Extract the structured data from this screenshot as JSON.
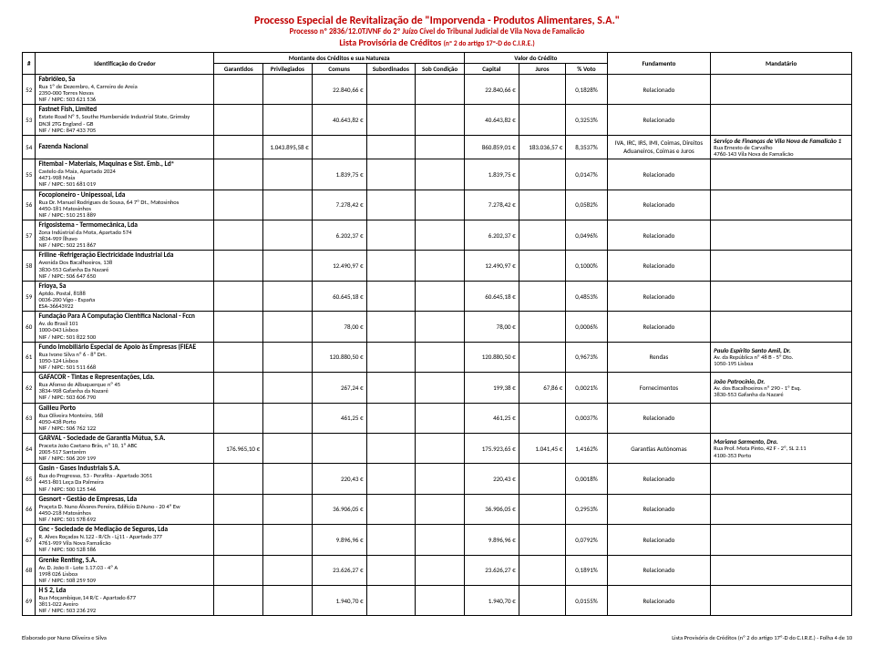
{
  "header": {
    "title_main": "Processo Especial de Revitalização de \"Imporvenda - Produtos Alimentares, S.A.\"",
    "title_sub": "Processo nº 2836/12.0TJVNF do 2º Juízo Cível do Tribunal Judicial de Vila Nova de Famalicão",
    "title_list": "Lista Provisória de Créditos",
    "title_list_small": "(nº 2 do artigo 17º-D do C.I.R.E.)"
  },
  "columns": {
    "idx": "#",
    "credor": "Identificação do Credor",
    "montante_group": "Montante dos Créditos e sua Natureza",
    "garantidos": "Garantidos",
    "privilegiados": "Privilegiados",
    "comuns": "Comuns",
    "subordinados": "Subordinados",
    "sob_condicao": "Sob Condição",
    "valor_group": "Valor do Crédito",
    "capital": "Capital",
    "juros": "Juros",
    "voto": "% Voto",
    "fundamento": "Fundamento",
    "mandatario": "Mandatário"
  },
  "rows": [
    {
      "idx": "52",
      "name": "Fabrióleo, Sa",
      "addr": "Rua 1º de Dezembro, 4, Carreiro de Areia",
      "addr2": "2350-000 Torres Novas",
      "nif": "NIF / NIPC: 503 621 536",
      "garantidos": "",
      "privilegiados": "",
      "comuns": "22.840,66 €",
      "subordinados": "",
      "sob": "",
      "capital": "22.840,66 €",
      "juros": "",
      "voto": "0,1828%",
      "fundamento": "Relacionado",
      "mandatario_name": "",
      "mandatario_addr": "",
      "mandatario_addr2": ""
    },
    {
      "idx": "53",
      "name": "Fastnet Fish, Limited",
      "addr": "Estate Road Nº 5, Southe Humberside Industrial State, Grimsby",
      "addr2": "DN3l 2TG England - GB",
      "nif": "NIF / NIPC: 847 433 705",
      "garantidos": "",
      "privilegiados": "",
      "comuns": "40.643,82 €",
      "subordinados": "",
      "sob": "",
      "capital": "40.643,82 €",
      "juros": "",
      "voto": "0,3253%",
      "fundamento": "Relacionado",
      "mandatario_name": "",
      "mandatario_addr": "",
      "mandatario_addr2": ""
    },
    {
      "idx": "54",
      "name": "Fazenda Nacional",
      "addr": "",
      "addr2": "",
      "nif": "",
      "garantidos": "",
      "privilegiados": "1.043.895,58 €",
      "comuns": "",
      "subordinados": "",
      "sob": "",
      "capital": "860.859,01 €",
      "juros": "183.036,57 €",
      "voto": "8,3537%",
      "fundamento": "IVA, IRC, IRS, IMI, Coimas, Direitos Aduaneiros, Coimas e Juros",
      "mandatario_name": "Serviço de Finanças de Vila Nova de Famalicão 1",
      "mandatario_addr": "Rua Ernesto de Carvalho",
      "mandatario_addr2": "4760-143 Vila Nova de Famalicão"
    },
    {
      "idx": "55",
      "name": "Fitembal - Materiais, Maquinas e Sist. Emb., Ldª",
      "addr": "Castelo da Maia, Apartado 2024",
      "addr2": "4471-908 Maia",
      "nif": "NIF / NIPC: 501 681 019",
      "garantidos": "",
      "privilegiados": "",
      "comuns": "1.839,75 €",
      "subordinados": "",
      "sob": "",
      "capital": "1.839,75 €",
      "juros": "",
      "voto": "0,0147%",
      "fundamento": "Relacionado",
      "mandatario_name": "",
      "mandatario_addr": "",
      "mandatario_addr2": ""
    },
    {
      "idx": "56",
      "name": "Focopioneiro - Unipessoal, Lda",
      "addr": "Rua Dr. Manuel Rodrigues de Sousa, 64 7º Dt., Matosinhos",
      "addr2": "4450-181 Matosinhos",
      "nif": "NIF / NIPC: 510 251 889",
      "garantidos": "",
      "privilegiados": "",
      "comuns": "7.278,42 €",
      "subordinados": "",
      "sob": "",
      "capital": "7.278,42 €",
      "juros": "",
      "voto": "0,0582%",
      "fundamento": "Relacionado",
      "mandatario_name": "",
      "mandatario_addr": "",
      "mandatario_addr2": ""
    },
    {
      "idx": "57",
      "name": "Frigosistema - Termomecânica, Lda",
      "addr": "Zona Indústrial da Mota, Apartado 574",
      "addr2": "3834-909 Ílhavo",
      "nif": "NIF / NIPC: 502 251 867",
      "garantidos": "",
      "privilegiados": "",
      "comuns": "6.202,37 €",
      "subordinados": "",
      "sob": "",
      "capital": "6.202,37 €",
      "juros": "",
      "voto": "0,0496%",
      "fundamento": "Relacionado",
      "mandatario_name": "",
      "mandatario_addr": "",
      "mandatario_addr2": ""
    },
    {
      "idx": "58",
      "name": "Friline -Refrigeração Electricidade Industrial Lda",
      "addr": "Avenida Dos Bacalhoeiros, 138",
      "addr2": "3830-553 Gafanha Da Nazaré",
      "nif": "NIF / NIPC: 506 647 650",
      "garantidos": "",
      "privilegiados": "",
      "comuns": "12.490,97 €",
      "subordinados": "",
      "sob": "",
      "capital": "12.490,97 €",
      "juros": "",
      "voto": "0,1000%",
      "fundamento": "Relacionado",
      "mandatario_name": "",
      "mandatario_addr": "",
      "mandatario_addr2": ""
    },
    {
      "idx": "59",
      "name": "Frioya, Sa",
      "addr": "Aptdo. Postal, 8188",
      "addr2": "0036-200 Vigo - España",
      "nif": "ESA-36643922",
      "garantidos": "",
      "privilegiados": "",
      "comuns": "60.645,18 €",
      "subordinados": "",
      "sob": "",
      "capital": "60.645,18 €",
      "juros": "",
      "voto": "0,4853%",
      "fundamento": "Relacionado",
      "mandatario_name": "",
      "mandatario_addr": "",
      "mandatario_addr2": ""
    },
    {
      "idx": "60",
      "name": "Fundação Para A Computação Científica Nacional - Fccn",
      "addr": "Av. do Brasil 101",
      "addr2": "1000-043 Lisboa",
      "nif": "NIF / NIPC: 501 822 500",
      "garantidos": "",
      "privilegiados": "",
      "comuns": "78,00 €",
      "subordinados": "",
      "sob": "",
      "capital": "78,00 €",
      "juros": "",
      "voto": "0,0006%",
      "fundamento": "Relacionado",
      "mandatario_name": "",
      "mandatario_addr": "",
      "mandatario_addr2": ""
    },
    {
      "idx": "61",
      "name": "Fundo Imobiliário Especial de Apoio às Empresas (FIEAE",
      "addr": "Rua Ivone Silva nº 6 - 8º Drt.",
      "addr2": "1050-124 Lisboa",
      "nif": "NIF / NIPC: 501 511 668",
      "garantidos": "",
      "privilegiados": "",
      "comuns": "120.880,50 €",
      "subordinados": "",
      "sob": "",
      "capital": "120.880,50 €",
      "juros": "",
      "voto": "0,9673%",
      "fundamento": "Rendas",
      "mandatario_name": "Paulo Espírito Santo Amil, Dr.",
      "mandatario_addr": "Av. da República nº 48 B - 5º Dto.",
      "mandatario_addr2": "1050-195 Lisboa"
    },
    {
      "idx": "62",
      "name": "GAFACOR - Tintas e Representações, Lda.",
      "addr": "Rua Afonso de Albuquerque nº 45",
      "addr2": "3834-908 Gafanha da Nazaré",
      "nif": "NIF / NIPC: 503 606 790",
      "garantidos": "",
      "privilegiados": "",
      "comuns": "267,24 €",
      "subordinados": "",
      "sob": "",
      "capital": "199,38 €",
      "juros": "67,86 €",
      "voto": "0,0021%",
      "fundamento": "Fornecimentos",
      "mandatario_name": "João Patrocínio, Dr.",
      "mandatario_addr": "Av. dos Bacalhoeiros nº 290 - 1º Esq.",
      "mandatario_addr2": "3830-553 Gafanha da Nazaré"
    },
    {
      "idx": "63",
      "name": "Galileu Porto",
      "addr": "Rua Oliveira Monteiro, 168",
      "addr2": "4050-438 Porto",
      "nif": "NIF / NIPC: 506 762 122",
      "garantidos": "",
      "privilegiados": "",
      "comuns": "461,25 €",
      "subordinados": "",
      "sob": "",
      "capital": "461,25 €",
      "juros": "",
      "voto": "0,0037%",
      "fundamento": "Relacionado",
      "mandatario_name": "",
      "mandatario_addr": "",
      "mandatario_addr2": ""
    },
    {
      "idx": "64",
      "name": "GARVAL - Sociedade de Garantia Mútua, S.A.",
      "addr": "Praceta João Caetano Brás, nº 10, 1º ABC",
      "addr2": "2005-517 Santarém",
      "nif": "NIF / NIPC: 506 209 199",
      "garantidos": "176.965,10 €",
      "privilegiados": "",
      "comuns": "",
      "subordinados": "",
      "sob": "",
      "capital": "175.923,65 €",
      "juros": "1.041,45 €",
      "voto": "1,4162%",
      "fundamento": "Garantias Autónomas",
      "mandatario_name": "Mariana Sarmento, Dra.",
      "mandatario_addr": "Rua Prof. Mota Pinto, 42 F - 2º, SL 2.11",
      "mandatario_addr2": "4100-353 Porto"
    },
    {
      "idx": "65",
      "name": "Gasin - Gases Industriais S.A.",
      "addr": "Rua do Progresso, 53 - Perafita - Apartado 3051",
      "addr2": "4451-801 Leça Da Palmeira",
      "nif": "NIF / NIPC: 500 125 546",
      "garantidos": "",
      "privilegiados": "",
      "comuns": "220,43 €",
      "subordinados": "",
      "sob": "",
      "capital": "220,43 €",
      "juros": "",
      "voto": "0,0018%",
      "fundamento": "Relacionado",
      "mandatario_name": "",
      "mandatario_addr": "",
      "mandatario_addr2": ""
    },
    {
      "idx": "66",
      "name": "Gesnort - Gestão de Empresas, Lda",
      "addr": "Praçeta D. Nuno Álvares Pereira, Edifício D.Nuno - 20 4º Ew",
      "addr2": "4450-218 Matosinhos",
      "nif": "NIF / NIPC: 501 578 692",
      "garantidos": "",
      "privilegiados": "",
      "comuns": "36.906,05 €",
      "subordinados": "",
      "sob": "",
      "capital": "36.906,05 €",
      "juros": "",
      "voto": "0,2953%",
      "fundamento": "Relacionado",
      "mandatario_name": "",
      "mandatario_addr": "",
      "mandatario_addr2": ""
    },
    {
      "idx": "67",
      "name": "Gnc - Sociedade de Mediação de Seguros, Lda",
      "addr": "R. Alves Roçadas N.122 - R/Ch - Lj11 - Apartado 377",
      "addr2": "4761-909 Vila Nova Famalicão",
      "nif": "NIF / NIPC: 500 528 586",
      "garantidos": "",
      "privilegiados": "",
      "comuns": "9.896,96 €",
      "subordinados": "",
      "sob": "",
      "capital": "9.896,96 €",
      "juros": "",
      "voto": "0,0792%",
      "fundamento": "Relacionado",
      "mandatario_name": "",
      "mandatario_addr": "",
      "mandatario_addr2": ""
    },
    {
      "idx": "68",
      "name": "Grenke Renting, S.A.",
      "addr": "Av. D. João II - Lote 1.17.03 - 4º A",
      "addr2": "1998 026 Lisboa",
      "nif": "NIF / NIPC: 508 259 509",
      "garantidos": "",
      "privilegiados": "",
      "comuns": "23.626,27 €",
      "subordinados": "",
      "sob": "",
      "capital": "23.626,27 €",
      "juros": "",
      "voto": "0,1891%",
      "fundamento": "Relacionado",
      "mandatario_name": "",
      "mandatario_addr": "",
      "mandatario_addr2": ""
    },
    {
      "idx": "69",
      "name": "H S 2, Lda",
      "addr": "Rua Moçambique,14 R/C - Apartado 677",
      "addr2": "3811-022 Aveiro",
      "nif": "NIF / NIPC: 503 236 292",
      "garantidos": "",
      "privilegiados": "",
      "comuns": "1.940,70 €",
      "subordinados": "",
      "sob": "",
      "capital": "1.940,70 €",
      "juros": "",
      "voto": "0,0155%",
      "fundamento": "Relacionado",
      "mandatario_name": "",
      "mandatario_addr": "",
      "mandatario_addr2": ""
    }
  ],
  "footer": {
    "left": "Elaborado por Nuno Oliveira e Silva",
    "right": "Lista Provisória de Créditos (nº 2 do artigo 17º-D do C.I.R.E.) - Folha 4 de 10"
  }
}
